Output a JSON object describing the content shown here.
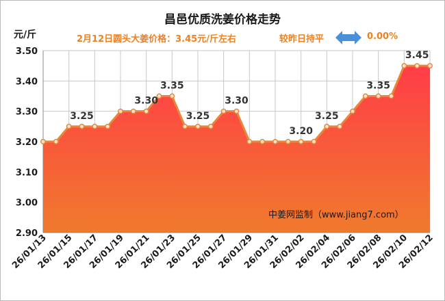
{
  "chart_data": {
    "type": "area",
    "title": "昌邑优质洗姜价格走势",
    "ylabel": "元/斤",
    "ylim": [
      2.9,
      3.5
    ],
    "yticks": [
      2.9,
      3.0,
      3.1,
      3.2,
      3.3,
      3.4,
      3.5
    ],
    "yticks_labels": [
      "2.90",
      "3.00",
      "3.10",
      "3.20",
      "3.30",
      "3.40",
      "3.50"
    ],
    "xtick_labels": [
      "26/01/13",
      "26/01/15",
      "26/01/17",
      "26/01/19",
      "26/01/21",
      "26/01/23",
      "26/01/25",
      "26/01/27",
      "26/01/29",
      "26/01/31",
      "26/02/02",
      "26/02/04",
      "26/02/06",
      "26/02/08",
      "26/02/10",
      "26/02/12"
    ],
    "x": [
      "26/01/13",
      "26/01/14",
      "26/01/15",
      "26/01/16",
      "26/01/17",
      "26/01/18",
      "26/01/19",
      "26/01/20",
      "26/01/21",
      "26/01/22",
      "26/01/23",
      "26/01/24",
      "26/01/25",
      "26/01/26",
      "26/01/27",
      "26/01/28",
      "26/01/29",
      "26/01/30",
      "26/01/31",
      "26/02/01",
      "26/02/02",
      "26/02/03",
      "26/02/04",
      "26/02/05",
      "26/02/06",
      "26/02/07",
      "26/02/08",
      "26/02/09",
      "26/02/10",
      "26/02/11",
      "26/02/12"
    ],
    "values": [
      3.2,
      3.2,
      3.25,
      3.25,
      3.25,
      3.25,
      3.3,
      3.3,
      3.3,
      3.35,
      3.35,
      3.25,
      3.25,
      3.25,
      3.3,
      3.3,
      3.2,
      3.2,
      3.2,
      3.2,
      3.2,
      3.2,
      3.25,
      3.25,
      3.3,
      3.35,
      3.35,
      3.35,
      3.45,
      3.45,
      3.45
    ],
    "data_labels": [
      {
        "x": "26/01/16",
        "text": "3.25"
      },
      {
        "x": "26/01/21",
        "text": "3.30"
      },
      {
        "x": "26/01/23",
        "text": "3.35"
      },
      {
        "x": "26/01/25",
        "text": "3.25"
      },
      {
        "x": "26/01/28",
        "text": "3.30"
      },
      {
        "x": "26/02/02",
        "text": "3.20"
      },
      {
        "x": "26/02/04",
        "text": "3.25"
      },
      {
        "x": "26/02/08",
        "text": "3.35"
      },
      {
        "x": "26/02/11",
        "text": "3.45"
      }
    ],
    "grid": true,
    "legend": "none"
  },
  "subtitle": {
    "main": "2月12日圆头大姜价格：3.45元/斤左右",
    "compare": "较昨日持平",
    "change": "0.00%"
  },
  "watermark": "中姜网监制（www.jiang7.com）",
  "colors": {
    "line": "#e8863a",
    "marker_fill": "#fde3c8",
    "area_top": "#ff3d48",
    "area_bottom": "#f07a2c",
    "subtitle": "#f08020",
    "arrow": "#4a90d9",
    "grid": "#c8c8c8"
  },
  "icons": {
    "change_indicator": "double-arrow-horizontal-icon"
  }
}
